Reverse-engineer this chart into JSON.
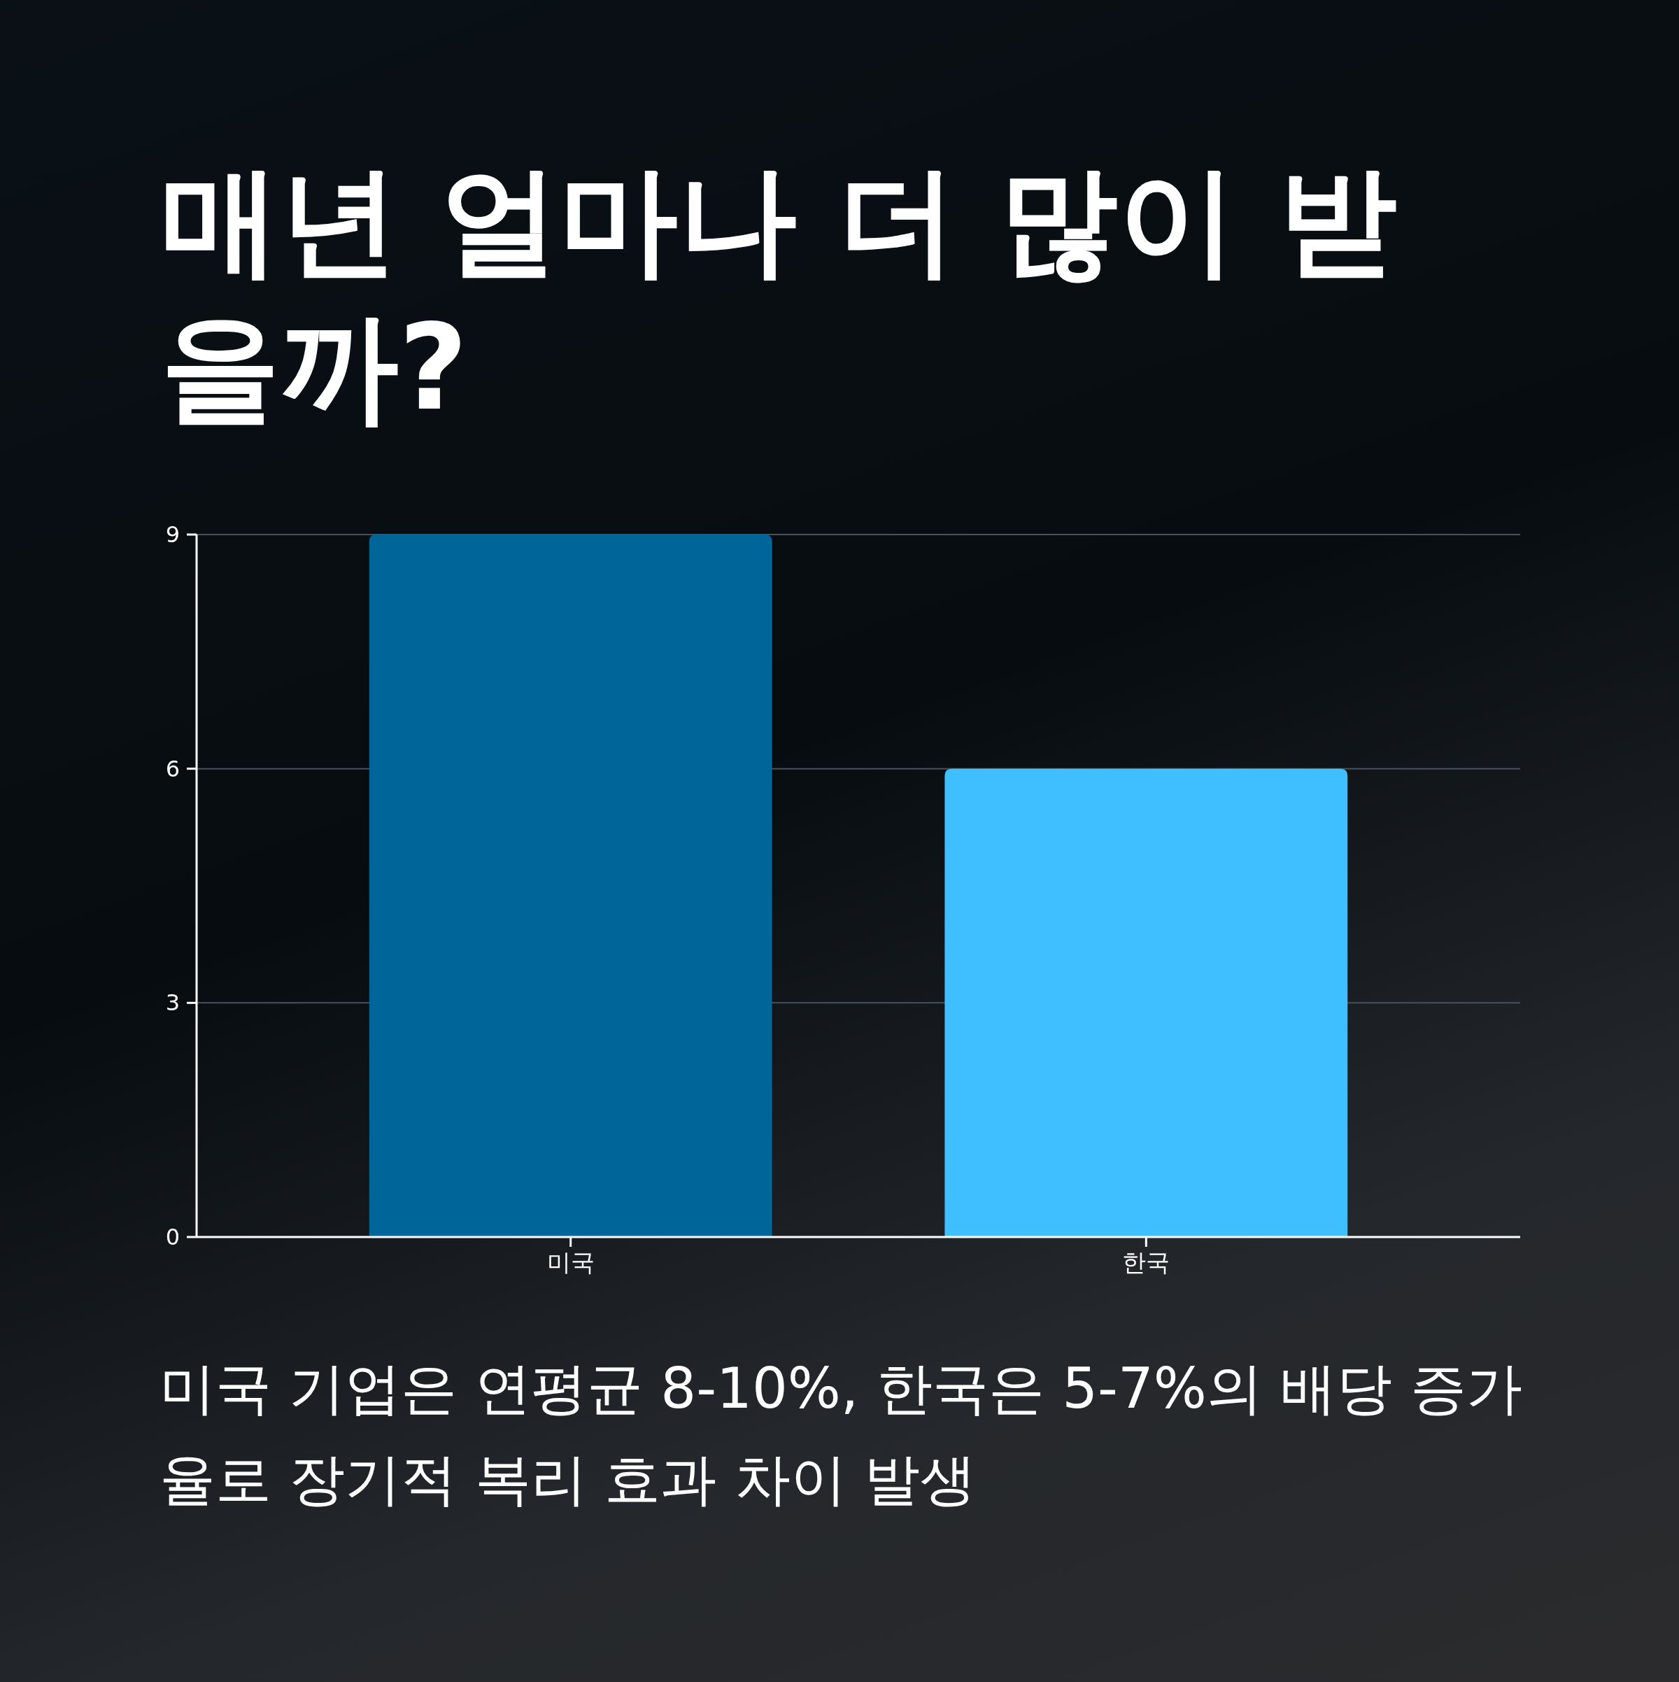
{
  "chart_data": {
    "type": "bar",
    "title": "매년 얼마나 더 많이 받을까?",
    "categories": [
      "미국",
      "한국"
    ],
    "values": [
      9,
      6
    ],
    "colors": [
      "#006699",
      "#3fbfff"
    ],
    "ylim": [
      0,
      9
    ],
    "yticks": [
      0,
      3,
      6,
      9
    ],
    "grid": "y",
    "annotations": [
      "미국 기업은 연평균 8-10%, 한국은 5-7%의 배당 증가율로 장기적 복리 효과 차이 발생"
    ]
  }
}
